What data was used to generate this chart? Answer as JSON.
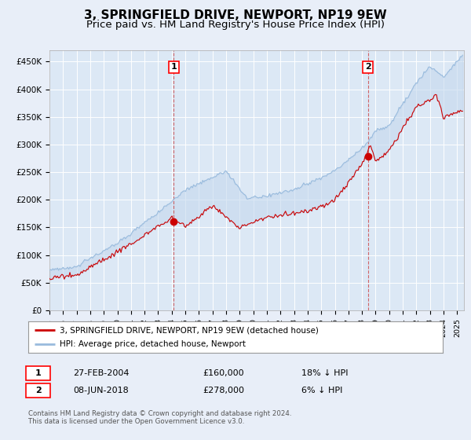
{
  "title": "3, SPRINGFIELD DRIVE, NEWPORT, NP19 9EW",
  "subtitle": "Price paid vs. HM Land Registry's House Price Index (HPI)",
  "ylim": [
    0,
    470000
  ],
  "xlim_start": 1995.0,
  "xlim_end": 2025.5,
  "background_color": "#e8eef8",
  "plot_bg": "#e8eef8",
  "chart_fill": "#dce8f5",
  "grid_color": "#cccccc",
  "hpi_color": "#99bbdd",
  "price_color": "#cc0000",
  "ann1_x": 2004.15,
  "ann1_price": 160000,
  "ann2_x": 2018.44,
  "ann2_price": 278000,
  "legend_label1": "3, SPRINGFIELD DRIVE, NEWPORT, NP19 9EW (detached house)",
  "legend_label2": "HPI: Average price, detached house, Newport",
  "table_row1": [
    "1",
    "27-FEB-2004",
    "£160,000",
    "18% ↓ HPI"
  ],
  "table_row2": [
    "2",
    "08-JUN-2018",
    "£278,000",
    "6% ↓ HPI"
  ],
  "footnote": "Contains HM Land Registry data © Crown copyright and database right 2024.\nThis data is licensed under the Open Government Licence v3.0.",
  "title_fontsize": 11,
  "subtitle_fontsize": 9.5
}
